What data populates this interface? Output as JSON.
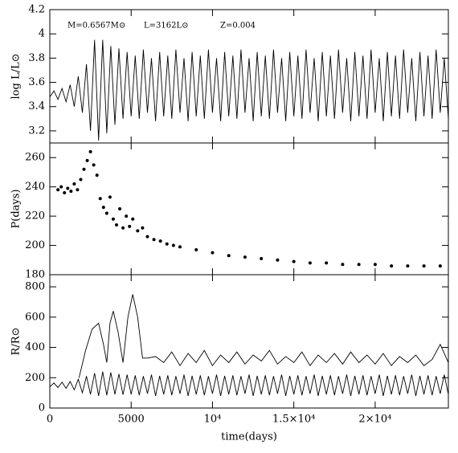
{
  "chart_data": [
    {
      "type": "line",
      "ylabel": "log L/L⊙",
      "annotations": [
        "M=0.6567M⊙",
        "L=3162L⊙",
        "Z=0.004"
      ],
      "xlim": [
        0,
        24500
      ],
      "xticks": [
        0,
        5000,
        10000,
        15000,
        20000
      ],
      "ylim": [
        3.1,
        4.2
      ],
      "yticks": [
        3.2,
        3.4,
        3.6,
        3.8,
        4,
        4.2
      ],
      "series": [
        {
          "color": "#000000",
          "x": [
            0,
            250,
            500,
            750,
            1000,
            1250,
            1500,
            1750,
            2000,
            2250,
            2500,
            2750,
            3000,
            3250,
            3500,
            3750,
            4000,
            4250,
            4500,
            4750,
            5000,
            5250,
            5500,
            5750,
            6000,
            6250,
            6500,
            6750,
            7000,
            7250,
            7500,
            7750,
            8000,
            8250,
            8500,
            8750,
            9000,
            9250,
            9500,
            9750,
            10000,
            10250,
            10500,
            10750,
            11000,
            11250,
            11500,
            11750,
            12000,
            12250,
            12500,
            12750,
            13000,
            13250,
            13500,
            13750,
            14000,
            14250,
            14500,
            14750,
            15000,
            15250,
            15500,
            15750,
            16000,
            16250,
            16500,
            16750,
            17000,
            17250,
            17500,
            17750,
            18000,
            18250,
            18500,
            18750,
            19000,
            19250,
            19500,
            19750,
            20000,
            20250,
            20500,
            20750,
            21000,
            21250,
            21500,
            21750,
            22000,
            22250,
            22500,
            22750,
            23000,
            23250,
            23500,
            23750,
            24000,
            24250,
            24500
          ],
          "values": [
            3.48,
            3.53,
            3.46,
            3.55,
            3.44,
            3.58,
            3.4,
            3.65,
            3.35,
            3.75,
            3.2,
            3.95,
            3.12,
            3.95,
            3.18,
            3.9,
            3.25,
            3.88,
            3.3,
            3.85,
            3.32,
            3.82,
            3.3,
            3.87,
            3.35,
            3.8,
            3.28,
            3.85,
            3.32,
            3.82,
            3.3,
            3.87,
            3.35,
            3.8,
            3.28,
            3.85,
            3.32,
            3.82,
            3.3,
            3.87,
            3.35,
            3.8,
            3.28,
            3.85,
            3.32,
            3.82,
            3.3,
            3.87,
            3.35,
            3.8,
            3.28,
            3.85,
            3.32,
            3.82,
            3.3,
            3.87,
            3.35,
            3.8,
            3.28,
            3.85,
            3.32,
            3.82,
            3.3,
            3.87,
            3.35,
            3.8,
            3.28,
            3.85,
            3.32,
            3.82,
            3.3,
            3.87,
            3.35,
            3.8,
            3.28,
            3.85,
            3.32,
            3.82,
            3.3,
            3.87,
            3.35,
            3.8,
            3.28,
            3.85,
            3.32,
            3.82,
            3.3,
            3.87,
            3.35,
            3.8,
            3.28,
            3.85,
            3.32,
            3.82,
            3.3,
            3.87,
            3.35,
            3.8,
            3.3
          ]
        }
      ]
    },
    {
      "type": "scatter",
      "ylabel": "P(days)",
      "xlim": [
        0,
        24500
      ],
      "xticks": [
        0,
        5000,
        10000,
        15000,
        20000
      ],
      "ylim": [
        180,
        270
      ],
      "yticks": [
        180,
        200,
        220,
        240,
        260
      ],
      "series": [
        {
          "color": "#000000",
          "x": [
            500,
            700,
            900,
            1100,
            1300,
            1500,
            1700,
            1900,
            2100,
            2300,
            2500,
            2700,
            2900,
            3100,
            3300,
            3500,
            3700,
            3900,
            4100,
            4300,
            4500,
            4700,
            4900,
            5100,
            5400,
            5700,
            6000,
            6400,
            6800,
            7200,
            7600,
            8000,
            9000,
            10000,
            11000,
            12000,
            13000,
            14000,
            15000,
            16000,
            17000,
            18000,
            19000,
            20000,
            21000,
            22000,
            23000,
            24000
          ],
          "values": [
            238,
            240,
            236,
            239,
            237,
            242,
            238,
            245,
            252,
            258,
            264,
            255,
            248,
            232,
            226,
            222,
            233,
            218,
            214,
            225,
            212,
            220,
            213,
            218,
            210,
            212,
            206,
            204,
            203,
            201,
            200,
            199,
            197,
            195,
            193,
            192,
            191,
            190,
            189,
            188,
            188,
            187,
            187,
            187,
            186,
            186,
            186,
            186
          ]
        }
      ]
    },
    {
      "type": "line",
      "ylabel": "R/R⊙",
      "xlabel": "time(days)",
      "xlim": [
        0,
        24500
      ],
      "xticks": [
        0,
        5000,
        {
          "value": 10000,
          "label": "10⁴"
        },
        {
          "value": 15000,
          "label": "1.5×10⁴"
        },
        {
          "value": 20000,
          "label": "2×10⁴"
        }
      ],
      "ylim": [
        0,
        880
      ],
      "yticks": [
        0,
        200,
        400,
        600,
        800
      ],
      "series": [
        {
          "color": "#000000",
          "x": [
            0,
            250,
            500,
            750,
            1000,
            1250,
            1500,
            1750,
            2000,
            2250,
            2500,
            2750,
            3000,
            3250,
            3500,
            3750,
            4000,
            4250,
            4500,
            4750,
            5000,
            5250,
            5500,
            5750,
            6000,
            6250,
            6500,
            6750,
            7000,
            7250,
            7500,
            7750,
            8000,
            8250,
            8500,
            8750,
            9000,
            9250,
            9500,
            9750,
            10000,
            10250,
            10500,
            10750,
            11000,
            11250,
            11500,
            11750,
            12000,
            12250,
            12500,
            12750,
            13000,
            13250,
            13500,
            13750,
            14000,
            14250,
            14500,
            14750,
            15000,
            15250,
            15500,
            15750,
            16000,
            16250,
            16500,
            16750,
            17000,
            17250,
            17500,
            17750,
            18000,
            18250,
            18500,
            18750,
            19000,
            19250,
            19500,
            19750,
            20000,
            20250,
            20500,
            20750,
            21000,
            21250,
            21500,
            21750,
            22000,
            22250,
            22500,
            22750,
            23000,
            23250,
            23500,
            23750,
            24000,
            24250,
            24500
          ],
          "values": [
            140,
            165,
            135,
            170,
            130,
            175,
            120,
            190,
            100,
            210,
            90,
            230,
            80,
            240,
            85,
            235,
            90,
            225,
            88,
            220,
            90,
            215,
            85,
            210,
            95,
            220,
            80,
            212,
            90,
            215,
            85,
            210,
            95,
            220,
            80,
            212,
            90,
            215,
            85,
            210,
            95,
            220,
            80,
            212,
            90,
            215,
            85,
            210,
            95,
            220,
            80,
            212,
            90,
            215,
            85,
            210,
            95,
            220,
            80,
            212,
            90,
            215,
            85,
            210,
            95,
            220,
            80,
            212,
            90,
            215,
            85,
            210,
            95,
            220,
            80,
            212,
            90,
            215,
            85,
            210,
            95,
            220,
            80,
            212,
            90,
            215,
            85,
            210,
            95,
            220,
            80,
            212,
            90,
            215,
            85,
            210,
            95,
            220,
            90
          ]
        },
        {
          "color": "#000000",
          "x": [
            1800,
            2200,
            2600,
            3000,
            3300,
            3500,
            3700,
            3900,
            4200,
            4500,
            4800,
            5100,
            5400,
            5700,
            6000,
            6500,
            7000,
            7500,
            8000,
            8500,
            9000,
            9500,
            10000,
            10500,
            11000,
            11500,
            12000,
            12500,
            13000,
            13500,
            14000,
            14500,
            15000,
            15500,
            16000,
            16500,
            17000,
            17500,
            18000,
            18500,
            19000,
            19500,
            20000,
            20500,
            21000,
            21500,
            22000,
            22500,
            23000,
            23500,
            24000,
            24500
          ],
          "values": [
            200,
            380,
            520,
            560,
            420,
            300,
            560,
            640,
            500,
            300,
            600,
            750,
            600,
            330,
            330,
            340,
            300,
            370,
            280,
            360,
            300,
            380,
            280,
            350,
            300,
            370,
            290,
            350,
            310,
            380,
            290,
            340,
            300,
            370,
            280,
            350,
            300,
            360,
            290,
            370,
            300,
            350,
            290,
            360,
            280,
            340,
            300,
            350,
            280,
            320,
            420,
            300
          ]
        }
      ]
    }
  ]
}
